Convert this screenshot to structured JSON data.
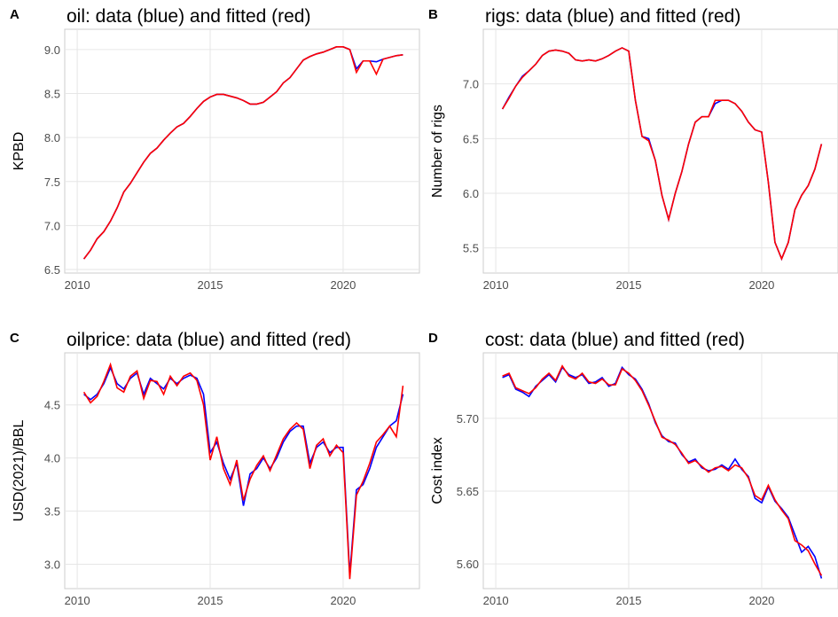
{
  "chart_data": [
    {
      "type": "line",
      "panel_label": "A",
      "title": "oil: data (blue) and fitted (red)",
      "y_label": "KPBD",
      "x": [
        2010.25,
        2010.5,
        2010.75,
        2011,
        2011.25,
        2011.5,
        2011.75,
        2012,
        2012.25,
        2012.5,
        2012.75,
        2013,
        2013.25,
        2013.5,
        2013.75,
        2014,
        2014.25,
        2014.5,
        2014.75,
        2015,
        2015.25,
        2015.5,
        2015.75,
        2016,
        2016.25,
        2016.5,
        2016.75,
        2017,
        2017.25,
        2017.5,
        2017.75,
        2018,
        2018.25,
        2018.5,
        2018.75,
        2019,
        2019.25,
        2019.5,
        2019.75,
        2020,
        2020.25,
        2020.5,
        2020.75,
        2021,
        2021.25,
        2021.5,
        2021.75,
        2022,
        2022.25
      ],
      "series": [
        {
          "color": "#0000ff",
          "values": [
            6.62,
            6.72,
            6.85,
            6.93,
            7.05,
            7.2,
            7.38,
            7.48,
            7.6,
            7.72,
            7.82,
            7.88,
            7.97,
            8.05,
            8.12,
            8.16,
            8.24,
            8.33,
            8.41,
            8.46,
            8.49,
            8.49,
            8.47,
            8.45,
            8.42,
            8.38,
            8.38,
            8.4,
            8.46,
            8.52,
            8.62,
            8.68,
            8.78,
            8.88,
            8.92,
            8.95,
            8.97,
            9,
            9.03,
            9.03,
            9,
            8.78,
            8.87,
            8.87,
            8.86,
            8.89,
            8.91,
            8.93,
            8.94
          ]
        },
        {
          "color": "#ff0000",
          "values": [
            6.62,
            6.72,
            6.85,
            6.93,
            7.05,
            7.2,
            7.38,
            7.48,
            7.6,
            7.72,
            7.82,
            7.88,
            7.97,
            8.05,
            8.12,
            8.16,
            8.24,
            8.33,
            8.41,
            8.46,
            8.49,
            8.49,
            8.47,
            8.45,
            8.42,
            8.38,
            8.38,
            8.4,
            8.46,
            8.52,
            8.62,
            8.68,
            8.78,
            8.88,
            8.92,
            8.95,
            8.97,
            9,
            9.03,
            9.03,
            9,
            8.74,
            8.87,
            8.87,
            8.72,
            8.89,
            8.91,
            8.93,
            8.94
          ]
        }
      ],
      "xlim": [
        2009.53,
        2022.87
      ],
      "xticks": [
        2010,
        2015,
        2020
      ],
      "ylim": [
        6.46,
        9.23
      ],
      "yticks": [
        {
          "value": 6.5,
          "label": "6.5"
        },
        {
          "value": 7,
          "label": "7.0"
        },
        {
          "value": 7.5,
          "label": "7.5"
        },
        {
          "value": 8,
          "label": "8.0"
        },
        {
          "value": 8.5,
          "label": "8.5"
        },
        {
          "value": 9,
          "label": "9.0"
        }
      ],
      "grid": true
    },
    {
      "type": "line",
      "panel_label": "B",
      "title": "rigs: data (blue) and fitted (red)",
      "y_label": "Number of rigs",
      "x": [
        2010.25,
        2010.5,
        2010.75,
        2011,
        2011.25,
        2011.5,
        2011.75,
        2012,
        2012.25,
        2012.5,
        2012.75,
        2013,
        2013.25,
        2013.5,
        2013.75,
        2014,
        2014.25,
        2014.5,
        2014.75,
        2015,
        2015.25,
        2015.5,
        2015.75,
        2016,
        2016.25,
        2016.5,
        2016.75,
        2017,
        2017.25,
        2017.5,
        2017.75,
        2018,
        2018.25,
        2018.5,
        2018.75,
        2019,
        2019.25,
        2019.5,
        2019.75,
        2020,
        2020.25,
        2020.5,
        2020.75,
        2021,
        2021.25,
        2021.5,
        2021.75,
        2022,
        2022.25
      ],
      "series": [
        {
          "color": "#0000ff",
          "values": [
            6.77,
            6.88,
            6.98,
            7.07,
            7.12,
            7.18,
            7.26,
            7.3,
            7.31,
            7.3,
            7.28,
            7.22,
            7.21,
            7.22,
            7.21,
            7.23,
            7.26,
            7.3,
            7.33,
            7.3,
            6.85,
            6.52,
            6.5,
            6.3,
            5.98,
            5.76,
            6,
            6.2,
            6.45,
            6.65,
            6.7,
            6.7,
            6.82,
            6.85,
            6.85,
            6.82,
            6.75,
            6.65,
            6.58,
            6.56,
            6.1,
            5.55,
            5.4,
            5.55,
            5.85,
            5.98,
            6.07,
            6.22,
            6.45
          ]
        },
        {
          "color": "#ff0000",
          "values": [
            6.77,
            6.87,
            6.98,
            7.06,
            7.12,
            7.18,
            7.26,
            7.3,
            7.31,
            7.3,
            7.28,
            7.22,
            7.21,
            7.22,
            7.21,
            7.23,
            7.26,
            7.3,
            7.33,
            7.3,
            6.85,
            6.52,
            6.48,
            6.3,
            5.98,
            5.76,
            6,
            6.2,
            6.45,
            6.65,
            6.7,
            6.7,
            6.85,
            6.85,
            6.85,
            6.82,
            6.75,
            6.65,
            6.58,
            6.56,
            6.1,
            5.55,
            5.4,
            5.55,
            5.85,
            5.98,
            6.07,
            6.22,
            6.45
          ]
        }
      ],
      "xlim": [
        2009.53,
        2022.87
      ],
      "xticks": [
        2010,
        2015,
        2020
      ],
      "ylim": [
        5.27,
        7.5
      ],
      "yticks": [
        5.5,
        {
          "value": 6,
          "label": "6.0"
        },
        6.5,
        {
          "value": 7,
          "label": "7.0"
        }
      ],
      "grid": true
    },
    {
      "type": "line",
      "panel_label": "C",
      "title": "oilprice: data (blue) and fitted (red)",
      "y_label": "USD(2021)/BBL",
      "x": [
        2010.25,
        2010.5,
        2010.75,
        2011,
        2011.25,
        2011.5,
        2011.75,
        2012,
        2012.25,
        2012.5,
        2012.75,
        2013,
        2013.25,
        2013.5,
        2013.75,
        2014,
        2014.25,
        2014.5,
        2014.75,
        2015,
        2015.25,
        2015.5,
        2015.75,
        2016,
        2016.25,
        2016.5,
        2016.75,
        2017,
        2017.25,
        2017.5,
        2017.75,
        2018,
        2018.25,
        2018.5,
        2018.75,
        2019,
        2019.25,
        2019.5,
        2019.75,
        2020,
        2020.25,
        2020.5,
        2020.75,
        2021,
        2021.25,
        2021.5,
        2021.75,
        2022,
        2022.25
      ],
      "series": [
        {
          "color": "#0000ff",
          "values": [
            4.6,
            4.55,
            4.6,
            4.7,
            4.85,
            4.7,
            4.65,
            4.75,
            4.8,
            4.6,
            4.75,
            4.7,
            4.65,
            4.75,
            4.7,
            4.75,
            4.78,
            4.75,
            4.6,
            4.05,
            4.15,
            3.95,
            3.8,
            3.95,
            3.55,
            3.85,
            3.9,
            4,
            3.9,
            4,
            4.15,
            4.25,
            4.3,
            4.3,
            3.95,
            4.1,
            4.15,
            4.05,
            4.1,
            4.1,
            2.9,
            3.7,
            3.75,
            3.9,
            4.1,
            4.2,
            4.3,
            4.35,
            4.6
          ]
        },
        {
          "color": "#ff0000",
          "values": [
            4.62,
            4.52,
            4.58,
            4.72,
            4.88,
            4.66,
            4.62,
            4.77,
            4.82,
            4.56,
            4.73,
            4.72,
            4.6,
            4.77,
            4.68,
            4.77,
            4.8,
            4.73,
            4.5,
            3.98,
            4.2,
            3.9,
            3.75,
            3.98,
            3.6,
            3.8,
            3.93,
            4.02,
            3.88,
            4.03,
            4.18,
            4.27,
            4.33,
            4.27,
            3.9,
            4.12,
            4.18,
            4.02,
            4.12,
            4.05,
            2.86,
            3.65,
            3.78,
            3.95,
            4.15,
            4.22,
            4.3,
            4.2,
            4.68
          ]
        }
      ],
      "xlim": [
        2009.53,
        2022.87
      ],
      "xticks": [
        2010,
        2015,
        2020
      ],
      "ylim": [
        2.77,
        4.99
      ],
      "yticks": [
        {
          "value": 3,
          "label": "3.0"
        },
        3.5,
        {
          "value": 4,
          "label": "4.0"
        },
        4.5
      ],
      "grid": true
    },
    {
      "type": "line",
      "panel_label": "D",
      "title": "cost: data (blue) and fitted (red)",
      "y_label": "Cost index",
      "x": [
        2010.25,
        2010.5,
        2010.75,
        2011,
        2011.25,
        2011.5,
        2011.75,
        2012,
        2012.25,
        2012.5,
        2012.75,
        2013,
        2013.25,
        2013.5,
        2013.75,
        2014,
        2014.25,
        2014.5,
        2014.75,
        2015,
        2015.25,
        2015.5,
        2015.75,
        2016,
        2016.25,
        2016.5,
        2016.75,
        2017,
        2017.25,
        2017.5,
        2017.75,
        2018,
        2018.25,
        2018.5,
        2018.75,
        2019,
        2019.25,
        2019.5,
        2019.75,
        2020,
        2020.25,
        2020.5,
        2020.75,
        2021,
        2021.25,
        2021.5,
        2021.75,
        2022,
        2022.25
      ],
      "series": [
        {
          "color": "#0000ff",
          "values": [
            5.728,
            5.73,
            5.72,
            5.718,
            5.715,
            5.722,
            5.726,
            5.73,
            5.725,
            5.735,
            5.73,
            5.728,
            5.73,
            5.724,
            5.725,
            5.728,
            5.722,
            5.724,
            5.735,
            5.73,
            5.727,
            5.72,
            5.71,
            5.697,
            5.688,
            5.684,
            5.683,
            5.675,
            5.67,
            5.672,
            5.666,
            5.664,
            5.665,
            5.668,
            5.665,
            5.672,
            5.665,
            5.66,
            5.645,
            5.642,
            5.653,
            5.643,
            5.638,
            5.632,
            5.62,
            5.608,
            5.612,
            5.605,
            5.59
          ]
        },
        {
          "color": "#ff0000",
          "values": [
            5.729,
            5.731,
            5.721,
            5.719,
            5.717,
            5.721,
            5.727,
            5.731,
            5.726,
            5.736,
            5.729,
            5.727,
            5.731,
            5.725,
            5.724,
            5.727,
            5.723,
            5.723,
            5.734,
            5.731,
            5.726,
            5.719,
            5.709,
            5.698,
            5.687,
            5.685,
            5.682,
            5.676,
            5.669,
            5.671,
            5.667,
            5.663,
            5.666,
            5.667,
            5.664,
            5.668,
            5.666,
            5.659,
            5.647,
            5.644,
            5.654,
            5.644,
            5.637,
            5.631,
            5.616,
            5.613,
            5.609,
            5.6,
            5.592
          ]
        }
      ],
      "xlim": [
        2009.53,
        2022.87
      ],
      "xticks": [
        2010,
        2015,
        2020
      ],
      "ylim": [
        5.583,
        5.745
      ],
      "yticks": [
        {
          "value": 5.6,
          "label": "5.60"
        },
        {
          "value": 5.65,
          "label": "5.65"
        },
        {
          "value": 5.7,
          "label": "5.70"
        }
      ],
      "grid": true
    }
  ]
}
